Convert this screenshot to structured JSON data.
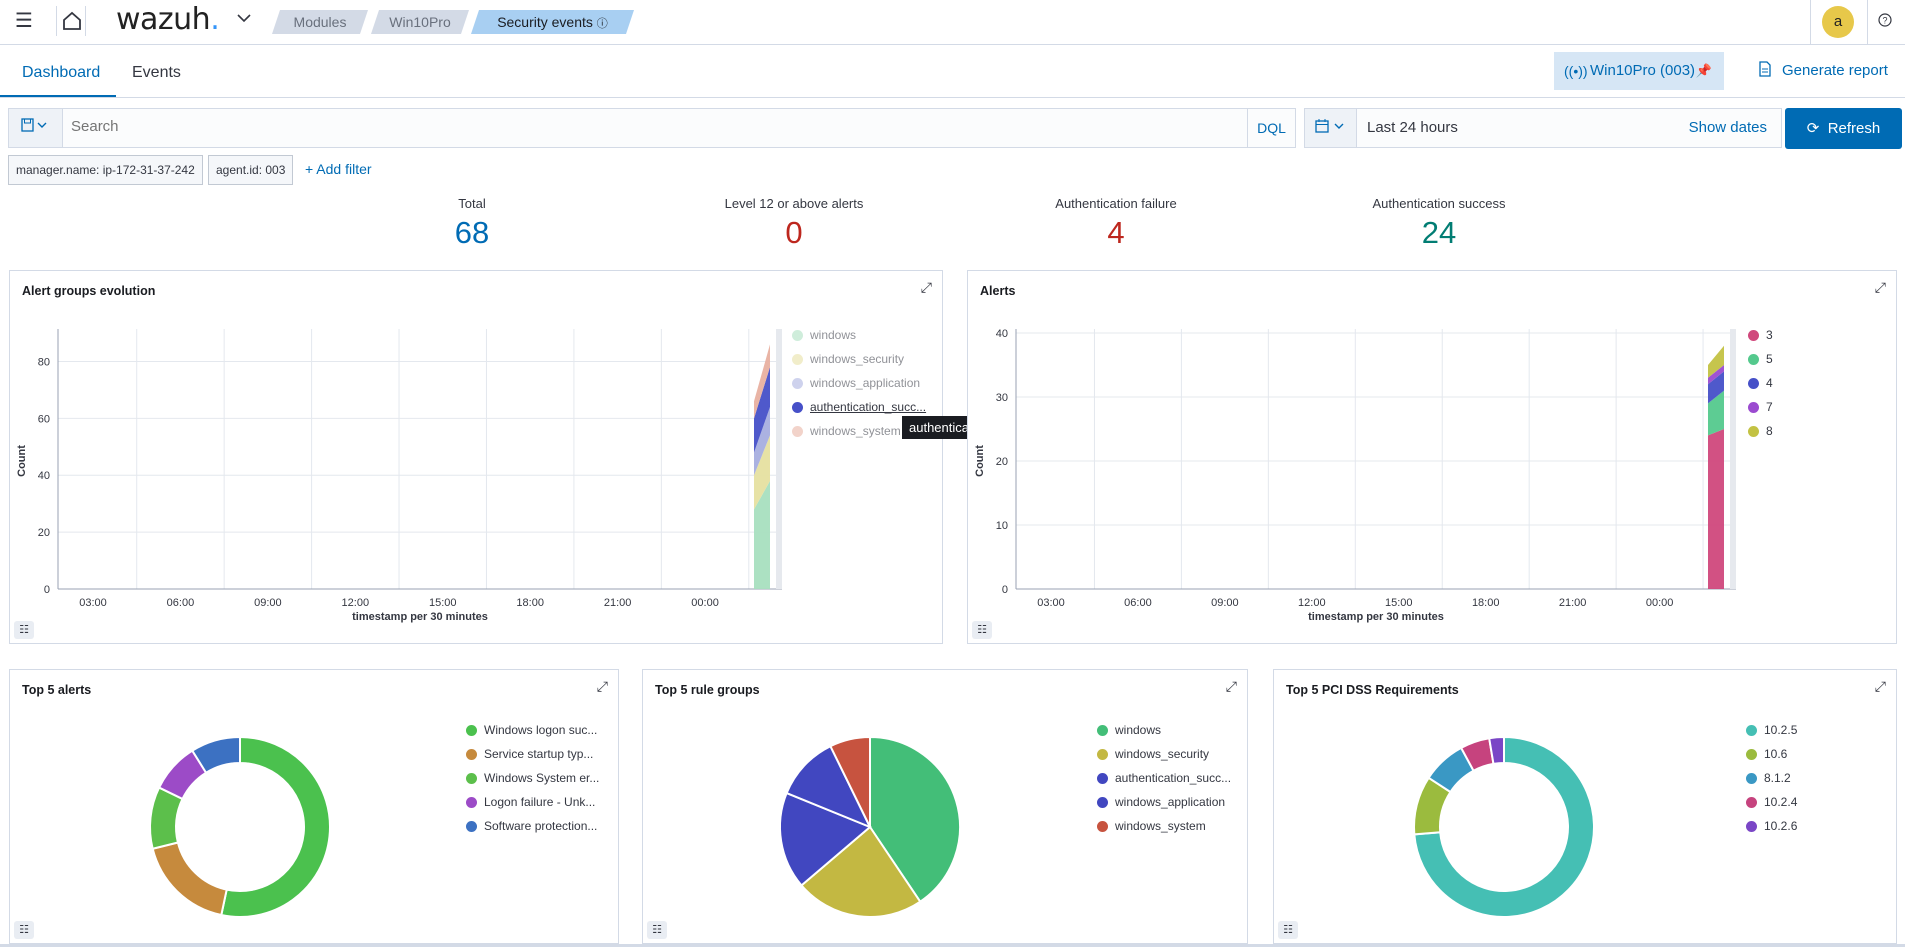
{
  "topbar": {
    "logo_text": "wazuh",
    "logo_dot": ".",
    "breadcrumbs": [
      "Modules",
      "Win10Pro",
      "Security events"
    ],
    "avatar_initial": "a"
  },
  "tabs": [
    {
      "label": "Dashboard",
      "active": true
    },
    {
      "label": "Events",
      "active": false
    }
  ],
  "agent_pill": {
    "label": "Win10Pro (003)"
  },
  "generate_report": {
    "label": "Generate report"
  },
  "search": {
    "placeholder": "Search",
    "language": "DQL"
  },
  "datepicker": {
    "range": "Last 24 hours",
    "show_dates": "Show dates"
  },
  "refresh": {
    "label": "Refresh"
  },
  "filters": [
    {
      "label": "manager.name: ip-172-31-37-242"
    },
    {
      "label": "agent.id: 003"
    }
  ],
  "add_filter": "+ Add filter",
  "metrics": [
    {
      "label": "Total",
      "value": "68",
      "color": "#006bb4"
    },
    {
      "label": "Level 12 or above alerts",
      "value": "0",
      "color": "#bd271e"
    },
    {
      "label": "Authentication failure",
      "value": "4",
      "color": "#bd271e"
    },
    {
      "label": "Authentication success",
      "value": "24",
      "color": "#017d73"
    }
  ],
  "tooltip": "authentication_success",
  "chart_data": [
    {
      "type": "area",
      "title": "Alert groups evolution",
      "xlabel": "timestamp per 30 minutes",
      "ylabel": "Count",
      "x_ticks": [
        "03:00",
        "06:00",
        "09:00",
        "12:00",
        "15:00",
        "18:00",
        "21:00",
        "00:00"
      ],
      "y_ticks": [
        0,
        20,
        40,
        60,
        80
      ],
      "ylim": [
        0,
        90
      ],
      "stacked": true,
      "x": [
        "00:00",
        "00:30"
      ],
      "series": [
        {
          "name": "windows",
          "color": "#a8dfbf",
          "values": [
            28,
            38
          ]
        },
        {
          "name": "windows_security",
          "color": "#e6e0a0",
          "values": [
            12,
            16
          ]
        },
        {
          "name": "windows_application",
          "color": "#a7aedf",
          "values": [
            8,
            10
          ]
        },
        {
          "name": "authentication_succ...",
          "color": "#4650c8",
          "values": [
            12,
            14
          ]
        },
        {
          "name": "windows_system",
          "color": "#e8b0a0",
          "values": [
            6,
            8
          ]
        }
      ],
      "legend_position": "right"
    },
    {
      "type": "area",
      "title": "Alerts",
      "xlabel": "timestamp per 30 minutes",
      "ylabel": "Count",
      "x_ticks": [
        "03:00",
        "06:00",
        "09:00",
        "12:00",
        "15:00",
        "18:00",
        "21:00",
        "00:00"
      ],
      "y_ticks": [
        0,
        10,
        20,
        30,
        40
      ],
      "ylim": [
        0,
        40
      ],
      "stacked": true,
      "x": [
        "00:00",
        "00:30"
      ],
      "series": [
        {
          "name": "3",
          "color": "#d0487c",
          "values": [
            24,
            25
          ]
        },
        {
          "name": "5",
          "color": "#54c98d",
          "values": [
            5,
            6
          ]
        },
        {
          "name": "4",
          "color": "#4650c8",
          "values": [
            3,
            3
          ]
        },
        {
          "name": "7",
          "color": "#9b4bd0",
          "values": [
            1,
            1
          ]
        },
        {
          "name": "8",
          "color": "#c3c243",
          "values": [
            2,
            3
          ]
        }
      ],
      "legend_position": "right"
    },
    {
      "type": "pie",
      "title": "Top 5 alerts",
      "donut": true,
      "categories": [
        "Windows logon suc...",
        "Service startup typ...",
        "Windows System er...",
        "Logon failure - Unk...",
        "Software protection..."
      ],
      "values": [
        24,
        8,
        5,
        4,
        4
      ],
      "colors": [
        "#4bc14e",
        "#c68a3d",
        "#5cbf4b",
        "#9c4bc7",
        "#3c71c2"
      ],
      "legend_position": "right"
    },
    {
      "type": "pie",
      "title": "Top 5 rule groups",
      "donut": false,
      "categories": [
        "windows",
        "windows_security",
        "authentication_succ...",
        "windows_application",
        "windows_system"
      ],
      "values": [
        28,
        16,
        12,
        8,
        5
      ],
      "colors": [
        "#43be78",
        "#c3b842",
        "#4147c0",
        "#4147c0",
        "#c7533f"
      ],
      "legend_position": "right"
    },
    {
      "type": "pie",
      "title": "Top 5 PCI DSS Requirements",
      "donut": true,
      "categories": [
        "10.2.5",
        "10.6",
        "8.1.2",
        "10.2.4",
        "10.2.6"
      ],
      "values": [
        28,
        4,
        3,
        2,
        1
      ],
      "colors": [
        "#45bfb4",
        "#9bbb3e",
        "#3a98c4",
        "#c6437e",
        "#7a46c6"
      ],
      "legend_position": "right"
    }
  ]
}
